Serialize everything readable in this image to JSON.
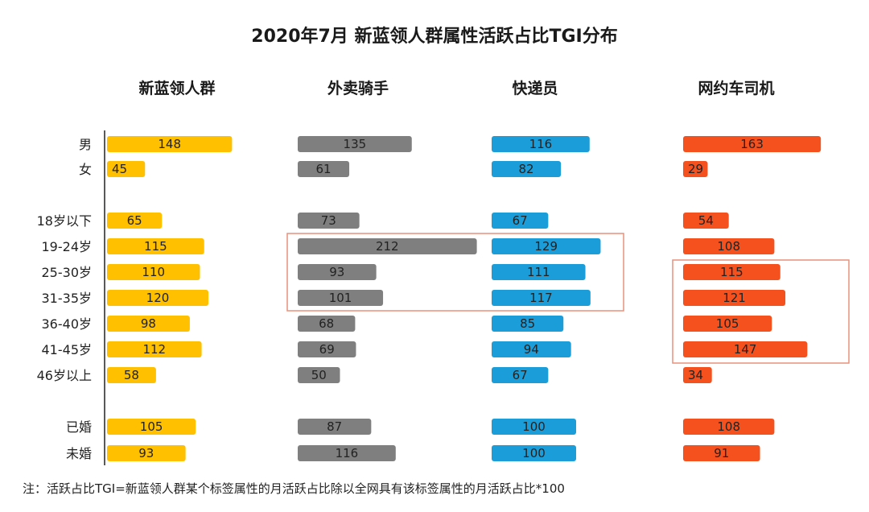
{
  "chart_data": {
    "type": "bar",
    "title": "2020年7月 新蓝领人群属性活跃占比TGI分布",
    "categories": [
      "男",
      "女",
      "18岁以下",
      "19-24岁",
      "25-30岁",
      "31-35岁",
      "36-40岁",
      "41-45岁",
      "46岁以上",
      "已婚",
      "未婚"
    ],
    "series": [
      {
        "name": "新蓝领人群",
        "color": "#FFC000",
        "values": [
          148,
          45,
          65,
          115,
          110,
          120,
          98,
          112,
          58,
          105,
          93
        ]
      },
      {
        "name": "外卖骑手",
        "color": "#7F7F7F",
        "values": [
          135,
          61,
          73,
          212,
          93,
          101,
          68,
          69,
          50,
          87,
          116
        ]
      },
      {
        "name": "快递员",
        "color": "#1B9DD9",
        "values": [
          116,
          82,
          67,
          129,
          111,
          117,
          85,
          94,
          67,
          100,
          100
        ]
      },
      {
        "name": "网约车司机",
        "color": "#F4511E",
        "values": [
          163,
          29,
          54,
          108,
          115,
          121,
          105,
          147,
          34,
          108,
          91
        ]
      }
    ],
    "highlight_color": "#E8927C",
    "note": "注：活跃占比TGI=新蓝领人群某个标签属性的月活跃占比除以全网具有该标签属性的月活跃占比*100"
  }
}
